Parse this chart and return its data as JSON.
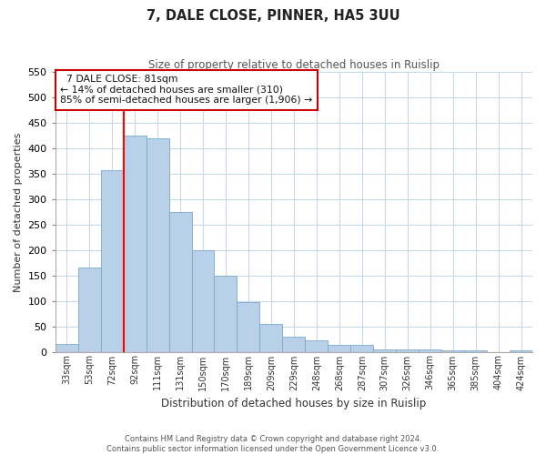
{
  "title": "7, DALE CLOSE, PINNER, HA5 3UU",
  "subtitle": "Size of property relative to detached houses in Ruislip",
  "xlabel": "Distribution of detached houses by size in Ruislip",
  "ylabel": "Number of detached properties",
  "bar_labels": [
    "33sqm",
    "53sqm",
    "72sqm",
    "92sqm",
    "111sqm",
    "131sqm",
    "150sqm",
    "170sqm",
    "189sqm",
    "209sqm",
    "229sqm",
    "248sqm",
    "268sqm",
    "287sqm",
    "307sqm",
    "326sqm",
    "346sqm",
    "365sqm",
    "385sqm",
    "404sqm",
    "424sqm"
  ],
  "bar_values": [
    15,
    165,
    357,
    425,
    420,
    275,
    200,
    150,
    97,
    55,
    30,
    22,
    13,
    14,
    5,
    5,
    5,
    3,
    2,
    0,
    3
  ],
  "bar_color": "#b8d0e8",
  "bar_edge_color": "#7aaacb",
  "vline_color": "red",
  "vline_pos": 2.5,
  "ylim": [
    0,
    550
  ],
  "yticks": [
    0,
    50,
    100,
    150,
    200,
    250,
    300,
    350,
    400,
    450,
    500,
    550
  ],
  "annotation_title": "7 DALE CLOSE: 81sqm",
  "annotation_line1": "← 14% of detached houses are smaller (310)",
  "annotation_line2": "85% of semi-detached houses are larger (1,906) →",
  "footer_line1": "Contains HM Land Registry data © Crown copyright and database right 2024.",
  "footer_line2": "Contains public sector information licensed under the Open Government Licence v3.0.",
  "background_color": "#ffffff",
  "grid_color": "#c8d8e8"
}
